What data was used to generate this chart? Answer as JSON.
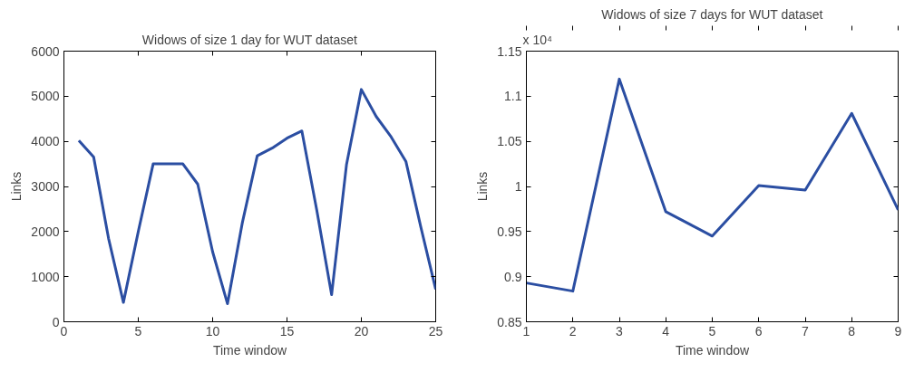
{
  "chart_data": [
    {
      "type": "line",
      "title": "Widows of size 1 day for WUT dataset",
      "xlabel": "Time window",
      "ylabel": "Links",
      "x": [
        1,
        2,
        3,
        4,
        5,
        6,
        7,
        8,
        9,
        10,
        11,
        12,
        13,
        14,
        15,
        16,
        17,
        18,
        19,
        20,
        21,
        22,
        23,
        24,
        25
      ],
      "series": [
        {
          "color": "#2b4ea2",
          "values": [
            4020,
            3650,
            1850,
            430,
            2000,
            3500,
            3500,
            3500,
            3050,
            1550,
            400,
            2200,
            3680,
            3850,
            4070,
            4230,
            2480,
            600,
            3480,
            5150,
            4550,
            4100,
            3550,
            2100,
            720
          ]
        }
      ],
      "xlim": [
        0,
        25
      ],
      "xticks": [
        0,
        5,
        10,
        15,
        20,
        25
      ],
      "ylim": [
        0,
        6000
      ],
      "yticks": [
        0,
        1000,
        2000,
        3000,
        4000,
        5000,
        6000
      ],
      "grid": false,
      "marker": "none",
      "line_style": "solid"
    },
    {
      "type": "line",
      "title": "Widows of size 7 days for WUT dataset",
      "xlabel": "Time window",
      "ylabel": "Links",
      "annotations": [
        "x 10⁴"
      ],
      "x": [
        1,
        2,
        3,
        4,
        5,
        6,
        7,
        8,
        9
      ],
      "series": [
        {
          "color": "#2b4ea2",
          "values": [
            0.893,
            0.884,
            1.119,
            0.972,
            0.945,
            1.001,
            0.996,
            1.081,
            0.974
          ]
        }
      ],
      "xlim": [
        1,
        9
      ],
      "xticks": [
        1,
        2,
        3,
        4,
        5,
        6,
        7,
        8,
        9
      ],
      "ylim": [
        0.85,
        1.15
      ],
      "yticks": [
        0.85,
        0.9,
        0.95,
        1,
        1.05,
        1.1,
        1.15
      ],
      "grid": false,
      "marker": "none",
      "line_style": "solid"
    }
  ]
}
